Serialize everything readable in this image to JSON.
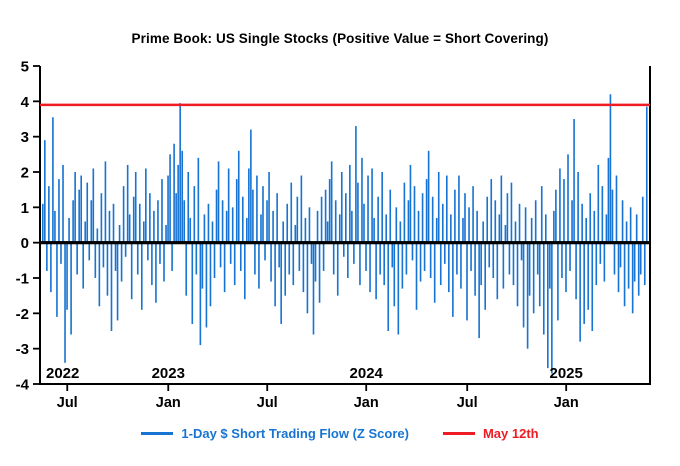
{
  "title": "Prime Book: US Single Stocks (Positive Value = Short Covering)",
  "legend": [
    {
      "label": "1-Day $ Short Trading Flow (Z Score)",
      "color": "#1874d2"
    },
    {
      "label": "May 12th",
      "color": "#ee1c23"
    }
  ],
  "chart_data": {
    "type": "bar",
    "title": "Prime Book: US Single Stocks (Positive Value = Short Covering)",
    "xlabel": "",
    "ylabel": "",
    "ylim": [
      -4,
      5
    ],
    "yticks": [
      -4,
      -3,
      -2,
      -1,
      0,
      1,
      2,
      3,
      4,
      5
    ],
    "bar_color": "#1874d2",
    "axis_color": "#000000",
    "grid": false,
    "legend_position": "bottom",
    "hline": {
      "value": 3.9,
      "label": "May 12th",
      "color": "#ee1c23"
    },
    "xticks": [
      {
        "index": 12,
        "label": "Jul"
      },
      {
        "index": 62,
        "label": "Jan"
      },
      {
        "index": 111,
        "label": "Jul"
      },
      {
        "index": 160,
        "label": "Jan"
      },
      {
        "index": 210,
        "label": "Jul"
      },
      {
        "index": 259,
        "label": "Jan"
      }
    ],
    "year_labels": [
      {
        "index": 0,
        "label": "2022",
        "anchor": "start"
      },
      {
        "index": 62,
        "label": "2023",
        "anchor": "middle"
      },
      {
        "index": 160,
        "label": "2024",
        "anchor": "middle"
      },
      {
        "index": 259,
        "label": "2025",
        "anchor": "middle"
      }
    ],
    "x_span": "May 2022 - May 2025",
    "series": [
      {
        "name": "1-Day $ Short Trading Flow (Z Score)",
        "values": [
          1.1,
          2.9,
          -0.8,
          1.6,
          -1.4,
          3.55,
          0.9,
          -2.1,
          1.8,
          -0.6,
          2.2,
          -3.4,
          -1.9,
          0.7,
          -2.6,
          1.2,
          2.0,
          -0.9,
          1.5,
          1.9,
          -1.3,
          0.6,
          1.7,
          -0.5,
          1.2,
          2.1,
          -1.0,
          0.4,
          -1.8,
          1.4,
          -0.7,
          2.3,
          -1.5,
          0.9,
          -2.5,
          1.1,
          -0.8,
          -2.2,
          0.5,
          -1.1,
          1.6,
          -0.4,
          2.2,
          0.8,
          -1.6,
          1.3,
          2.0,
          -0.9,
          1.1,
          -1.9,
          0.6,
          2.1,
          -0.5,
          1.4,
          -1.2,
          0.9,
          -1.7,
          1.2,
          -0.6,
          1.8,
          -1.1,
          0.5,
          1.9,
          2.5,
          -0.8,
          2.8,
          1.4,
          2.2,
          3.95,
          2.6,
          1.2,
          -1.5,
          2.0,
          0.7,
          -2.3,
          1.6,
          -0.9,
          2.4,
          -2.9,
          -1.3,
          0.8,
          -2.4,
          1.1,
          -1.8,
          0.6,
          -1.0,
          1.5,
          2.3,
          -0.7,
          1.2,
          -1.4,
          0.9,
          2.1,
          -0.6,
          1.0,
          -1.2,
          1.8,
          2.6,
          -0.8,
          1.3,
          -1.6,
          0.7,
          2.1,
          3.2,
          1.5,
          -0.9,
          1.9,
          -1.3,
          0.8,
          1.6,
          -0.5,
          1.2,
          2.0,
          -1.1,
          0.9,
          -1.8,
          1.4,
          -0.7,
          -2.3,
          0.6,
          -1.5,
          1.1,
          -0.9,
          1.7,
          -1.2,
          0.5,
          1.3,
          -0.8,
          1.9,
          -1.4,
          0.7,
          -2.0,
          1.0,
          -0.6,
          -2.6,
          -1.1,
          0.9,
          -1.7,
          1.3,
          -0.8,
          1.5,
          0.6,
          1.8,
          2.3,
          -0.9,
          1.2,
          -1.5,
          0.8,
          2.0,
          -0.4,
          1.4,
          -1.0,
          2.2,
          0.9,
          -0.6,
          3.3,
          1.7,
          -1.2,
          2.4,
          1.1,
          -0.8,
          1.9,
          -1.4,
          2.1,
          0.7,
          -1.6,
          1.3,
          -0.9,
          2.0,
          -1.2,
          0.8,
          -2.5,
          1.5,
          -0.7,
          -1.8,
          1.0,
          -2.6,
          0.6,
          -1.3,
          1.7,
          -0.9,
          1.2,
          2.2,
          -0.5,
          1.6,
          -1.9,
          0.9,
          -1.1,
          1.4,
          -0.8,
          1.8,
          2.6,
          -1.0,
          1.3,
          -1.7,
          0.7,
          2.0,
          -1.2,
          1.1,
          -0.6,
          1.9,
          -1.4,
          0.8,
          -2.1,
          1.5,
          -0.9,
          1.9,
          -1.3,
          0.7,
          1.4,
          -2.2,
          1.0,
          -0.8,
          1.6,
          -1.5,
          0.9,
          -2.7,
          -1.2,
          0.6,
          -1.9,
          1.3,
          -0.7,
          1.8,
          -1.0,
          1.2,
          -1.6,
          0.8,
          1.9,
          -1.3,
          0.5,
          1.4,
          -0.9,
          1.7,
          -1.2,
          0.6,
          -1.8,
          1.1,
          -0.5,
          -2.4,
          1.0,
          -3.0,
          -1.5,
          0.7,
          -2.0,
          1.2,
          -0.9,
          -1.8,
          1.6,
          -2.6,
          0.8,
          -3.55,
          -1.3,
          -3.7,
          0.9,
          1.5,
          -2.2,
          2.1,
          -1.0,
          1.8,
          -1.4,
          2.5,
          -0.8,
          1.2,
          3.5,
          -1.6,
          2.0,
          -2.8,
          1.1,
          -2.3,
          0.7,
          -1.9,
          1.4,
          -2.5,
          0.9,
          -1.2,
          2.2,
          -0.6,
          1.6,
          -1.1,
          0.8,
          2.4,
          4.2,
          1.5,
          -0.9,
          1.9,
          -1.4,
          -0.7,
          1.2,
          -1.8,
          0.6,
          -1.3,
          1.0,
          -2.0,
          -1.1,
          0.8,
          -1.5,
          -0.9,
          1.3,
          -1.2,
          3.85
        ]
      }
    ]
  }
}
